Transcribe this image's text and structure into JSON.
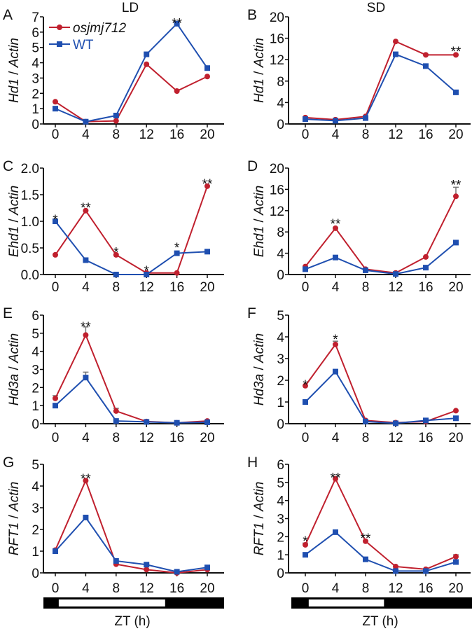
{
  "colors": {
    "mutant": "#c0202e",
    "wt": "#1f4fb0",
    "error": "#777777"
  },
  "legend": {
    "mutant": "osjmj712",
    "wt": "WT"
  },
  "ref_gene": "Actin",
  "xlabel": "ZT (h)",
  "light_bars": [
    {
      "condition": "LD",
      "light_start_h": 0,
      "light_end_h": 14
    },
    {
      "condition": "SD",
      "light_start_h": 0,
      "light_end_h": 10
    }
  ],
  "chart_data": [
    {
      "type": "line",
      "panel": "A",
      "title": "LD",
      "gene": "Hd1",
      "ylim": [
        0,
        7
      ],
      "yticks": [
        "0",
        "1",
        "2",
        "3",
        "4",
        "5",
        "6",
        "7"
      ],
      "x": [
        0,
        4,
        8,
        12,
        16,
        20
      ],
      "xticks": [
        "0",
        "4",
        "8",
        "12",
        "16",
        "20"
      ],
      "series": [
        {
          "name": "osjmj712",
          "values": [
            1.45,
            0.15,
            0.2,
            3.9,
            2.15,
            3.1
          ]
        },
        {
          "name": "WT",
          "values": [
            1.0,
            0.15,
            0.55,
            4.55,
            6.55,
            3.65
          ]
        }
      ],
      "stars": [
        {
          "x": 16,
          "text": "**",
          "y": 6.75
        }
      ]
    },
    {
      "type": "line",
      "panel": "B",
      "title": "SD",
      "gene": "Hd1",
      "ylim": [
        0,
        20
      ],
      "yticks": [
        "0",
        "4",
        "8",
        "12",
        "16",
        "20"
      ],
      "x": [
        0,
        4,
        8,
        12,
        16,
        20
      ],
      "xticks": [
        "0",
        "4",
        "8",
        "12",
        "16",
        "20"
      ],
      "series": [
        {
          "name": "osjmj712",
          "values": [
            1.2,
            0.8,
            1.4,
            15.4,
            12.9,
            12.9
          ]
        },
        {
          "name": "WT",
          "values": [
            0.9,
            0.6,
            1.1,
            13.0,
            10.8,
            5.9
          ]
        }
      ],
      "stars": [
        {
          "x": 20,
          "text": "**",
          "y": 14
        }
      ]
    },
    {
      "type": "line",
      "panel": "C",
      "title": "",
      "gene": "Ehd1",
      "ylim": [
        0,
        2
      ],
      "yticks": [
        "0.0",
        "0.5",
        "1.0",
        "1.5",
        "2.0"
      ],
      "x": [
        0,
        4,
        8,
        12,
        16,
        20
      ],
      "xticks": [
        "0",
        "4",
        "8",
        "12",
        "16",
        "20"
      ],
      "series": [
        {
          "name": "osjmj712",
          "values": [
            0.37,
            1.2,
            0.37,
            0.03,
            0.03,
            1.66
          ]
        },
        {
          "name": "WT",
          "values": [
            1.0,
            0.27,
            0.0,
            0.0,
            0.4,
            0.43
          ]
        }
      ],
      "stars": [
        {
          "x": 0,
          "text": "*",
          "y": 1.08
        },
        {
          "x": 4,
          "text": "**",
          "y": 1.3
        },
        {
          "x": 8,
          "text": "*",
          "y": 0.47
        },
        {
          "x": 12,
          "text": "*",
          "y": 0.12
        },
        {
          "x": 16,
          "text": "*",
          "y": 0.55
        },
        {
          "x": 20,
          "text": "**",
          "y": 1.75
        }
      ]
    },
    {
      "type": "line",
      "panel": "D",
      "title": "",
      "gene": "Ehd1",
      "ylim": [
        0,
        20
      ],
      "yticks": [
        "0",
        "4",
        "8",
        "12",
        "16",
        "20"
      ],
      "x": [
        0,
        4,
        8,
        12,
        16,
        20
      ],
      "xticks": [
        "0",
        "4",
        "8",
        "12",
        "16",
        "20"
      ],
      "series": [
        {
          "name": "osjmj712",
          "values": [
            1.5,
            8.7,
            1.0,
            0.3,
            3.3,
            14.7
          ],
          "errors": [
            0,
            0,
            0,
            0,
            0,
            1.7
          ]
        },
        {
          "name": "WT",
          "values": [
            1.0,
            3.2,
            0.8,
            0.1,
            1.3,
            6.0
          ]
        }
      ],
      "stars": [
        {
          "x": 4,
          "text": "**",
          "y": 10
        },
        {
          "x": 20,
          "text": "**",
          "y": 17.3
        }
      ]
    },
    {
      "type": "line",
      "panel": "E",
      "title": "",
      "gene": "Hd3a",
      "ylim": [
        0,
        6
      ],
      "yticks": [
        "0",
        "1",
        "2",
        "3",
        "4",
        "5",
        "6"
      ],
      "x": [
        0,
        4,
        8,
        12,
        16,
        20
      ],
      "xticks": [
        "0",
        "4",
        "8",
        "12",
        "16",
        "20"
      ],
      "series": [
        {
          "name": "osjmj712",
          "values": [
            1.4,
            4.9,
            0.7,
            0.12,
            0.05,
            0.15
          ],
          "errors": [
            0.15,
            0.45,
            0.15,
            0,
            0,
            0.05
          ]
        },
        {
          "name": "WT",
          "values": [
            1.0,
            2.55,
            0.15,
            0.1,
            0.05,
            0.08
          ],
          "errors": [
            0.05,
            0.3,
            0,
            0,
            0,
            0
          ]
        }
      ],
      "stars": [
        {
          "x": 4,
          "text": "**",
          "y": 5.5
        }
      ]
    },
    {
      "type": "line",
      "panel": "F",
      "title": "",
      "gene": "Hd3a",
      "ylim": [
        0,
        5
      ],
      "yticks": [
        "0",
        "1",
        "2",
        "3",
        "4",
        "5"
      ],
      "x": [
        0,
        4,
        8,
        12,
        16,
        20
      ],
      "xticks": [
        "0",
        "4",
        "8",
        "12",
        "16",
        "20"
      ],
      "series": [
        {
          "name": "osjmj712",
          "values": [
            1.75,
            3.65,
            0.15,
            0.05,
            0.1,
            0.6
          ],
          "errors": [
            0,
            0.15,
            0,
            0,
            0,
            0
          ]
        },
        {
          "name": "WT",
          "values": [
            1.0,
            2.4,
            0.1,
            0.02,
            0.15,
            0.25
          ]
        }
      ],
      "stars": [
        {
          "x": 0,
          "text": "*",
          "y": 1.9
        },
        {
          "x": 4,
          "text": "*",
          "y": 4.0
        }
      ]
    },
    {
      "type": "line",
      "panel": "G",
      "title": "",
      "gene": "RFT1",
      "ylim": [
        0,
        5
      ],
      "yticks": [
        "0",
        "1",
        "2",
        "3",
        "4",
        "5"
      ],
      "x": [
        0,
        4,
        8,
        12,
        16,
        20
      ],
      "xticks": [
        "0",
        "4",
        "8",
        "12",
        "16",
        "20"
      ],
      "series": [
        {
          "name": "osjmj712",
          "values": [
            1.05,
            4.25,
            0.4,
            0.15,
            0.0,
            0.15
          ]
        },
        {
          "name": "WT",
          "values": [
            1.0,
            2.55,
            0.55,
            0.38,
            0.05,
            0.25
          ]
        }
      ],
      "stars": [
        {
          "x": 4,
          "text": "**",
          "y": 4.45
        }
      ]
    },
    {
      "type": "line",
      "panel": "H",
      "title": "",
      "gene": "RFT1",
      "ylim": [
        0,
        6
      ],
      "yticks": [
        "0",
        "1",
        "2",
        "3",
        "4",
        "5",
        "6"
      ],
      "x": [
        0,
        4,
        8,
        12,
        16,
        20
      ],
      "xticks": [
        "0",
        "4",
        "8",
        "12",
        "16",
        "20"
      ],
      "series": [
        {
          "name": "osjmj712",
          "values": [
            1.55,
            5.2,
            1.75,
            0.35,
            0.2,
            0.9
          ],
          "errors": [
            0.1,
            0.1,
            0,
            0,
            0,
            0.1
          ]
        },
        {
          "name": "WT",
          "values": [
            1.0,
            2.25,
            0.75,
            0.1,
            0.1,
            0.6
          ]
        }
      ],
      "stars": [
        {
          "x": 0,
          "text": "*",
          "y": 1.9
        },
        {
          "x": 4,
          "text": "**",
          "y": 5.4
        },
        {
          "x": 8,
          "text": "**",
          "y": 2.05
        }
      ]
    }
  ]
}
